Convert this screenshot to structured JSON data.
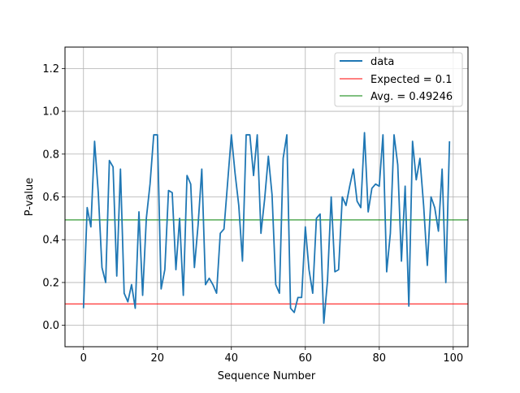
{
  "chart_data": {
    "type": "line",
    "xlabel": "Sequence Number",
    "ylabel": "P-value",
    "xlim": [
      -5,
      104
    ],
    "ylim": [
      -0.1,
      1.3
    ],
    "x_ticks": [
      0,
      20,
      40,
      60,
      80,
      100
    ],
    "x_tick_labels": [
      "0",
      "20",
      "40",
      "60",
      "80",
      "100"
    ],
    "y_ticks": [
      0.0,
      0.2,
      0.4,
      0.6,
      0.8,
      1.0,
      1.2
    ],
    "y_tick_labels": [
      "0.0",
      "0.2",
      "0.4",
      "0.6",
      "0.8",
      "1.0",
      "1.2"
    ],
    "grid": true,
    "legend_position": "top-right",
    "series": [
      {
        "name": "data",
        "color": "#1f77b4",
        "x": [
          0,
          1,
          2,
          3,
          4,
          5,
          6,
          7,
          8,
          9,
          10,
          11,
          12,
          13,
          14,
          15,
          16,
          17,
          18,
          19,
          20,
          21,
          22,
          23,
          24,
          25,
          26,
          27,
          28,
          29,
          30,
          31,
          32,
          33,
          34,
          35,
          36,
          37,
          38,
          39,
          40,
          41,
          42,
          43,
          44,
          45,
          46,
          47,
          48,
          49,
          50,
          51,
          52,
          53,
          54,
          55,
          56,
          57,
          58,
          59,
          60,
          61,
          62,
          63,
          64,
          65,
          66,
          67,
          68,
          69,
          70,
          71,
          72,
          73,
          74,
          75,
          76,
          77,
          78,
          79,
          80,
          81,
          82,
          83,
          84,
          85,
          86,
          87,
          88,
          89,
          90,
          91,
          92,
          93,
          94,
          95,
          96,
          97,
          98,
          99
        ],
        "values": [
          0.08,
          0.55,
          0.46,
          0.86,
          0.62,
          0.27,
          0.2,
          0.77,
          0.74,
          0.23,
          0.73,
          0.15,
          0.11,
          0.19,
          0.08,
          0.53,
          0.14,
          0.5,
          0.66,
          0.89,
          0.89,
          0.17,
          0.26,
          0.63,
          0.62,
          0.26,
          0.5,
          0.14,
          0.7,
          0.66,
          0.27,
          0.47,
          0.73,
          0.19,
          0.22,
          0.19,
          0.15,
          0.43,
          0.45,
          0.67,
          0.89,
          0.71,
          0.56,
          0.3,
          0.89,
          0.89,
          0.7,
          0.89,
          0.43,
          0.59,
          0.79,
          0.61,
          0.19,
          0.15,
          0.78,
          0.89,
          0.08,
          0.06,
          0.13,
          0.13,
          0.46,
          0.26,
          0.15,
          0.5,
          0.52,
          0.01,
          0.21,
          0.6,
          0.25,
          0.26,
          0.6,
          0.56,
          0.65,
          0.73,
          0.58,
          0.55,
          0.9,
          0.53,
          0.64,
          0.66,
          0.65,
          0.89,
          0.25,
          0.43,
          0.89,
          0.75,
          0.3,
          0.65,
          0.09,
          0.86,
          0.68,
          0.78,
          0.56,
          0.28,
          0.6,
          0.55,
          0.44,
          0.73,
          0.2,
          0.86
        ]
      }
    ],
    "reference_lines": [
      {
        "name": "Expected = 0.1",
        "value": 0.1,
        "color": "#ff0000"
      },
      {
        "name": "Avg. = 0.49246",
        "value": 0.49246,
        "color": "#008000"
      }
    ]
  }
}
